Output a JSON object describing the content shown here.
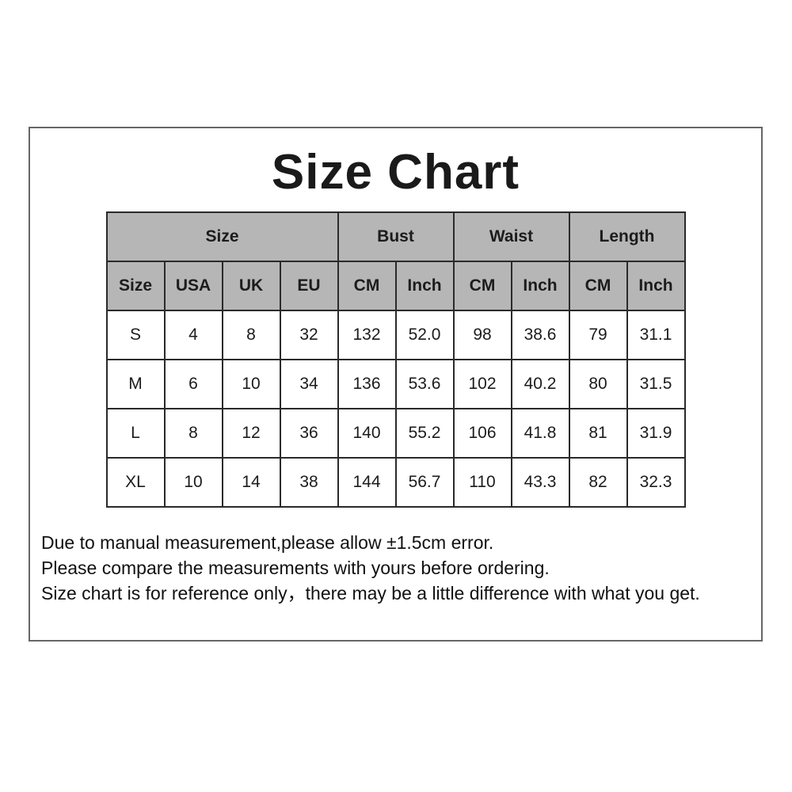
{
  "title": "Size Chart",
  "table": {
    "groups": [
      {
        "label": "Size",
        "span": 4
      },
      {
        "label": "Bust",
        "span": 2
      },
      {
        "label": "Waist",
        "span": 2
      },
      {
        "label": "Length",
        "span": 2
      }
    ],
    "columns": [
      "Size",
      "USA",
      "UK",
      "EU",
      "CM",
      "Inch",
      "CM",
      "Inch",
      "CM",
      "Inch"
    ],
    "rows": [
      [
        "S",
        "4",
        "8",
        "32",
        "132",
        "52.0",
        "98",
        "38.6",
        "79",
        "31.1"
      ],
      [
        "M",
        "6",
        "10",
        "34",
        "136",
        "53.6",
        "102",
        "40.2",
        "80",
        "31.5"
      ],
      [
        "L",
        "8",
        "12",
        "36",
        "140",
        "55.2",
        "106",
        "41.8",
        "81",
        "31.9"
      ],
      [
        "XL",
        "10",
        "14",
        "38",
        "144",
        "56.7",
        "110",
        "43.3",
        "82",
        "32.3"
      ]
    ]
  },
  "notes": [
    "Due to manual measurement,please allow ±1.5cm error.",
    "Please compare the measurements with yours before ordering.",
    "Size chart is for reference only，there may be a little difference with what you get."
  ],
  "colors": {
    "header_bg": "#b6b6b6",
    "table_border": "#2a2a2a",
    "outer_border": "#666666",
    "text": "#1c1c1c",
    "background": "#ffffff"
  }
}
